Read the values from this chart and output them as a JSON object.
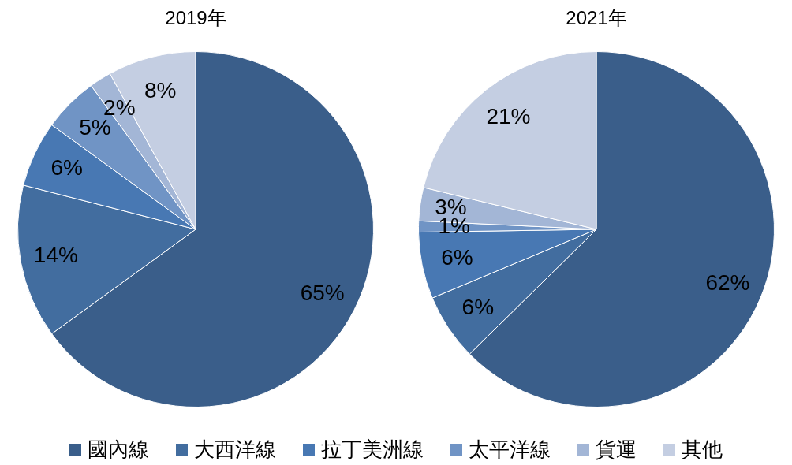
{
  "chart_data": {
    "type": "pie",
    "categories": [
      "國內線",
      "大西洋線",
      "拉丁美洲線",
      "太平洋線",
      "貨運",
      "其他"
    ],
    "colors": [
      "#3a5e8a",
      "#426d9f",
      "#4878b3",
      "#7094c5",
      "#a3b6d6",
      "#c4cee2"
    ],
    "legend": "bottom",
    "series": [
      {
        "name": "2019年",
        "values": [
          65,
          14,
          6,
          5,
          2,
          8
        ],
        "value_labels": [
          "65%",
          "14%",
          "6%",
          "5%",
          "2%",
          "8%"
        ]
      },
      {
        "name": "2021年",
        "values": [
          62,
          6,
          6,
          1,
          3,
          21
        ],
        "value_labels": [
          "62%",
          "6%",
          "6%",
          "1%",
          "3%",
          "21%"
        ]
      }
    ]
  }
}
